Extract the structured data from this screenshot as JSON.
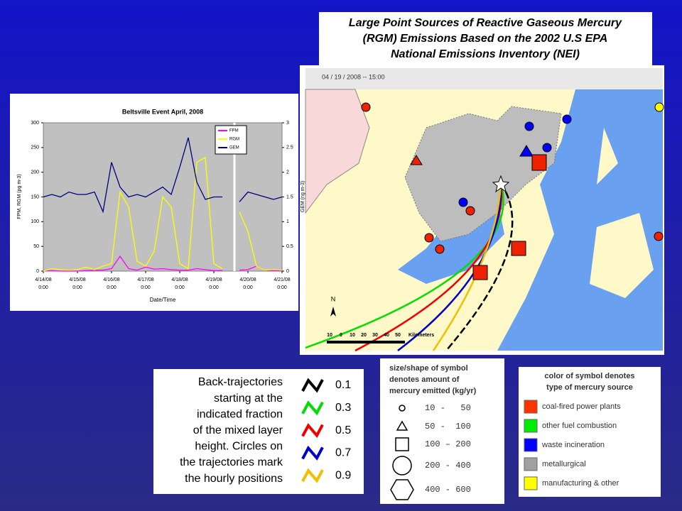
{
  "map_title": [
    "Large Point Sources of Reactive Gaseous Mercury",
    "(RGM) Emissions Based on the 2002 U.S EPA",
    "National Emissions Inventory (NEI)"
  ],
  "chart_data": {
    "type": "line",
    "title": "Beltsville Event April, 2008",
    "x_label": "Date/Time",
    "y_label": "FPM, RGM (pg m-3)",
    "y2_label": "GEM (ng m-3)",
    "x": [
      0,
      0.25,
      0.5,
      0.75,
      1,
      1.25,
      1.5,
      1.75,
      2,
      2.25,
      2.5,
      2.75,
      3,
      3.25,
      3.5,
      3.75,
      4,
      4.25,
      4.5,
      4.75,
      5,
      5.25,
      5.5,
      5.75,
      6,
      6.25,
      6.5,
      6.75,
      7
    ],
    "xlim": [
      0,
      7
    ],
    "xticks": [
      {
        "value": 0,
        "label": "4/14/08 0:00"
      },
      {
        "value": 1,
        "label": "4/15/08 0:00"
      },
      {
        "value": 2,
        "label": "4/16/08 0:00"
      },
      {
        "value": 3,
        "label": "4/17/08 0:00"
      },
      {
        "value": 4,
        "label": "4/18/08 0:00"
      },
      {
        "value": 5,
        "label": "4/19/08 0:00"
      },
      {
        "value": 6,
        "label": "4/20/08 0:00"
      },
      {
        "value": 7,
        "label": "4/21/08 0:00"
      }
    ],
    "ylim": [
      0,
      300
    ],
    "yticks": [
      0,
      50,
      100,
      150,
      200,
      250,
      300
    ],
    "y2lim": [
      0,
      3
    ],
    "y2ticks": [
      0,
      0.5,
      1,
      1.5,
      2,
      2.5,
      3
    ],
    "series": [
      {
        "name": "FPM",
        "color": "#ff00ff",
        "values": [
          0,
          1,
          0,
          0,
          0,
          1,
          2,
          2,
          5,
          30,
          5,
          2,
          8,
          4,
          5,
          3,
          2,
          2,
          5,
          3,
          1,
          1,
          null,
          2,
          3,
          10,
          2,
          1,
          1
        ]
      },
      {
        "name": "RGM",
        "color": "#ffff00",
        "values": [
          0,
          5,
          3,
          2,
          3,
          8,
          3,
          10,
          15,
          160,
          130,
          20,
          10,
          40,
          150,
          130,
          15,
          5,
          220,
          230,
          15,
          5,
          null,
          120,
          80,
          10,
          2,
          3,
          2
        ]
      },
      {
        "name": "GEM",
        "color": "#000080",
        "axis": "y2",
        "values": [
          1.5,
          1.55,
          1.5,
          1.6,
          1.55,
          1.55,
          1.6,
          1.2,
          2.2,
          1.7,
          1.5,
          1.55,
          1.5,
          1.6,
          1.7,
          1.55,
          2.1,
          2.7,
          1.8,
          1.45,
          1.5,
          1.5,
          null,
          1.4,
          1.6,
          1.55,
          1.5,
          1.45,
          1.5
        ]
      }
    ]
  },
  "map": {
    "timestamp": "04 / 19 / 2008 -- 15:00",
    "north": "N",
    "scale_labels": [
      "10",
      "0",
      "10",
      "20",
      "30",
      "40",
      "50"
    ],
    "scale_unit": "Kilometers"
  },
  "trajectory_legend": {
    "description": [
      "Back-trajectories",
      "starting at the",
      "indicated fraction",
      "of the mixed layer",
      "height. Circles on",
      "the trajectories mark",
      "the hourly positions"
    ],
    "items": [
      {
        "label": "0.1",
        "color": "#000000"
      },
      {
        "label": "0.3",
        "color": "#00dd00"
      },
      {
        "label": "0.5",
        "color": "#ee0000"
      },
      {
        "label": "0.7",
        "color": "#0000cc"
      },
      {
        "label": "0.9",
        "color": "#f0c000"
      }
    ]
  },
  "size_legend": {
    "title": [
      "size/shape of symbol",
      "denotes amount of",
      "mercury emitted (kg/yr)"
    ],
    "items": [
      "10 -   50",
      "50 -  100",
      "100 – 200",
      "200 - 400",
      "400 - 600"
    ]
  },
  "color_legend": {
    "title": [
      "color of symbol denotes",
      "type of mercury source"
    ],
    "items": [
      {
        "label": "coal-fired power plants",
        "color": "#ff3300"
      },
      {
        "label": "other fuel combustion",
        "color": "#00ee00"
      },
      {
        "label": "waste incineration",
        "color": "#0000ff"
      },
      {
        "label": "metallurgical",
        "color": "#a0a0a0"
      },
      {
        "label": "manufacturing & other",
        "color": "#ffff00"
      }
    ]
  }
}
